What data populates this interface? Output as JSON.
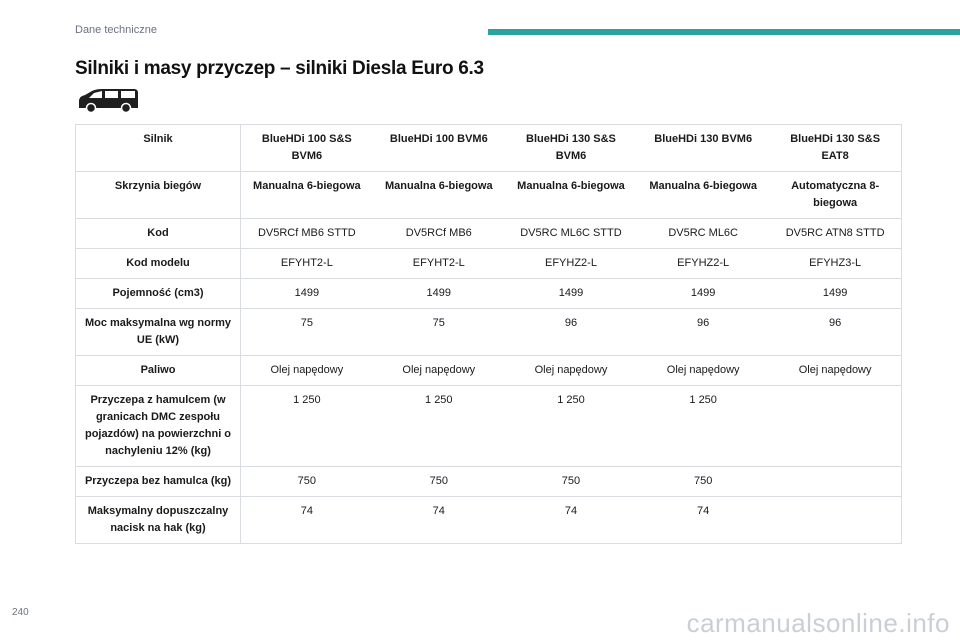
{
  "header": {
    "section": "Dane techniczne"
  },
  "title": "Silniki i masy przyczep – silniki Diesla Euro 6.3",
  "icons": {
    "vehicle": "van-icon"
  },
  "table": {
    "rows": [
      {
        "label": "Silnik",
        "cells": [
          "BlueHDi 100 S&S BVM6",
          "BlueHDi 100 BVM6",
          "BlueHDi 130 S&S BVM6",
          "BlueHDi 130 BVM6",
          "BlueHDi 130 S&S EAT8"
        ]
      },
      {
        "label": "Skrzynia biegów",
        "cells": [
          "Manualna 6-biegowa",
          "Manualna 6-biegowa",
          "Manualna 6-biegowa",
          "Manualna 6-biegowa",
          "Automatyczna 8-biegowa"
        ]
      },
      {
        "label": "Kod",
        "cells": [
          "DV5RCf MB6 STTD",
          "DV5RCf MB6",
          "DV5RC ML6C STTD",
          "DV5RC ML6C",
          "DV5RC ATN8 STTD"
        ]
      },
      {
        "label": "Kod modelu",
        "cells": [
          "EFYHT2-L",
          "EFYHT2-L",
          "EFYHZ2-L",
          "EFYHZ2-L",
          "EFYHZ3-L"
        ]
      },
      {
        "label": "Pojemność (cm3)",
        "cells": [
          "1499",
          "1499",
          "1499",
          "1499",
          "1499"
        ]
      },
      {
        "label": "Moc maksymalna wg normy UE (kW)",
        "cells": [
          "75",
          "75",
          "96",
          "96",
          "96"
        ]
      },
      {
        "label": "Paliwo",
        "cells": [
          "Olej napędowy",
          "Olej napędowy",
          "Olej napędowy",
          "Olej napędowy",
          "Olej napędowy"
        ]
      },
      {
        "label": "Przyczepa z hamulcem (w granicach DMC zespołu pojazdów) na powierzchni o nachyleniu 12% (kg)",
        "cells": [
          "1 250",
          "1 250",
          "1 250",
          "1 250",
          ""
        ]
      },
      {
        "label": "Przyczepa bez hamulca (kg)",
        "cells": [
          "750",
          "750",
          "750",
          "750",
          ""
        ]
      },
      {
        "label": "Maksymalny dopuszczalny nacisk na hak (kg)",
        "cells": [
          "74",
          "74",
          "74",
          "74",
          ""
        ]
      }
    ]
  },
  "footer": {
    "page_number": "240",
    "watermark": "carmanualsonline.info"
  },
  "colors": {
    "accent": "#2aa3a0",
    "border": "#d9dde1",
    "muted": "#6b7280"
  }
}
